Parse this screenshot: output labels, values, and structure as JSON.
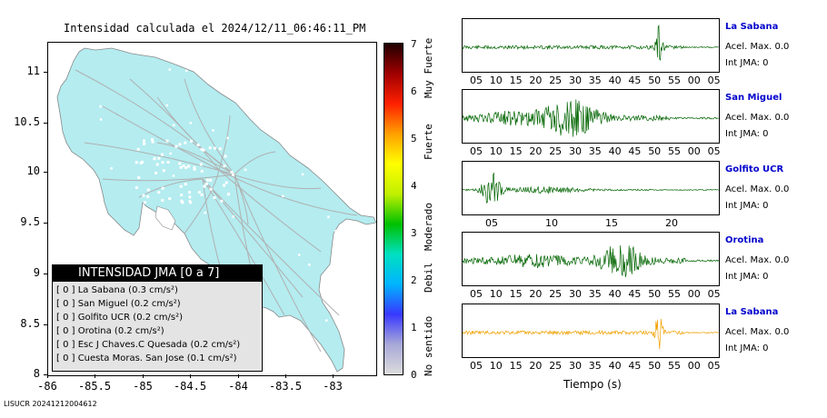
{
  "map": {
    "title": "Intensidad calculada el 2024/12/11_06:46:11_PM",
    "yticks": [
      "11",
      "10.5",
      "10",
      "9.5",
      "9",
      "8.5",
      "8"
    ],
    "xticks": [
      "-86",
      "-85.5",
      "-85",
      "-84.5",
      "-84",
      "-83.5",
      "-83"
    ],
    "land_color": "#b4ecf0",
    "road_color": "#b0b0b0"
  },
  "legend": {
    "title": "INTENSIDAD JMA [0 a 7]",
    "items": [
      "[ 0 ]  La Sabana (0.3 cm/s²)",
      "[ 0 ]  San Miguel (0.2 cm/s²)",
      "[ 0 ]  Golfito UCR (0.2 cm/s²)",
      "[ 0 ]  Orotina (0.2 cm/s²)",
      "[ 0 ]  Esc J Chaves.C Quesada (0.2 cm/s²)",
      "[ 0 ]  Cuesta Moras. San Jose (0.1 cm/s²)"
    ]
  },
  "colorbar": {
    "ticks": [
      "7",
      "6",
      "5",
      "4",
      "3",
      "2",
      "1",
      "0"
    ],
    "labels": [
      "Muy Fuerte",
      "Fuerte",
      "Moderado",
      "Debil",
      "No sentido"
    ],
    "gradient": [
      "#dcdcdc",
      "#a8a8d8",
      "#3838ff",
      "#00b4ff",
      "#00e0c0",
      "#00c000",
      "#c0f000",
      "#ffff00",
      "#ffa000",
      "#ff2000",
      "#a00000",
      "#200000"
    ]
  },
  "chart_data": [
    {
      "type": "line",
      "station": "La Sabana",
      "acel_label": "Acel. Max. 0.0",
      "int_label": "Int JMA: 0",
      "color": "#006400",
      "xticks": [
        "05",
        "10",
        "15",
        "20",
        "25",
        "30",
        "35",
        "40",
        "45",
        "50",
        "55",
        "00",
        "05"
      ],
      "peak_at": "50"
    },
    {
      "type": "line",
      "station": "San Miguel",
      "acel_label": "Acel. Max. 0.0",
      "int_label": "Int JMA: 0",
      "color": "#006400",
      "xticks": [
        "05",
        "10",
        "15",
        "20",
        "25",
        "30",
        "35",
        "40",
        "45",
        "50",
        "55",
        "00",
        "05"
      ],
      "peak_at": "25-30"
    },
    {
      "type": "line",
      "station": "Golfito UCR",
      "acel_label": "Acel. Max. 0.0",
      "int_label": "Int JMA: 0",
      "color": "#006400",
      "xticks": [
        "05",
        "10",
        "15",
        "20"
      ],
      "peak_at": "04"
    },
    {
      "type": "line",
      "station": "Orotina",
      "acel_label": "Acel. Max. 0.0",
      "int_label": "Int JMA: 0",
      "color": "#006400",
      "xticks": [
        "05",
        "10",
        "15",
        "20",
        "25",
        "30",
        "35",
        "40",
        "45",
        "50",
        "55",
        "00",
        "05"
      ],
      "peak_at": "40"
    },
    {
      "type": "line",
      "station": "La Sabana",
      "acel_label": "Acel. Max. 0.0",
      "int_label": "Int JMA: 0",
      "color": "#f0a000",
      "xticks": [
        "05",
        "10",
        "15",
        "20",
        "25",
        "30",
        "35",
        "40",
        "45",
        "50",
        "55",
        "00",
        "05"
      ],
      "peak_at": "50"
    }
  ],
  "xaxis_label": "Tiempo (s)",
  "footer": "LISUCR 20241212004612"
}
